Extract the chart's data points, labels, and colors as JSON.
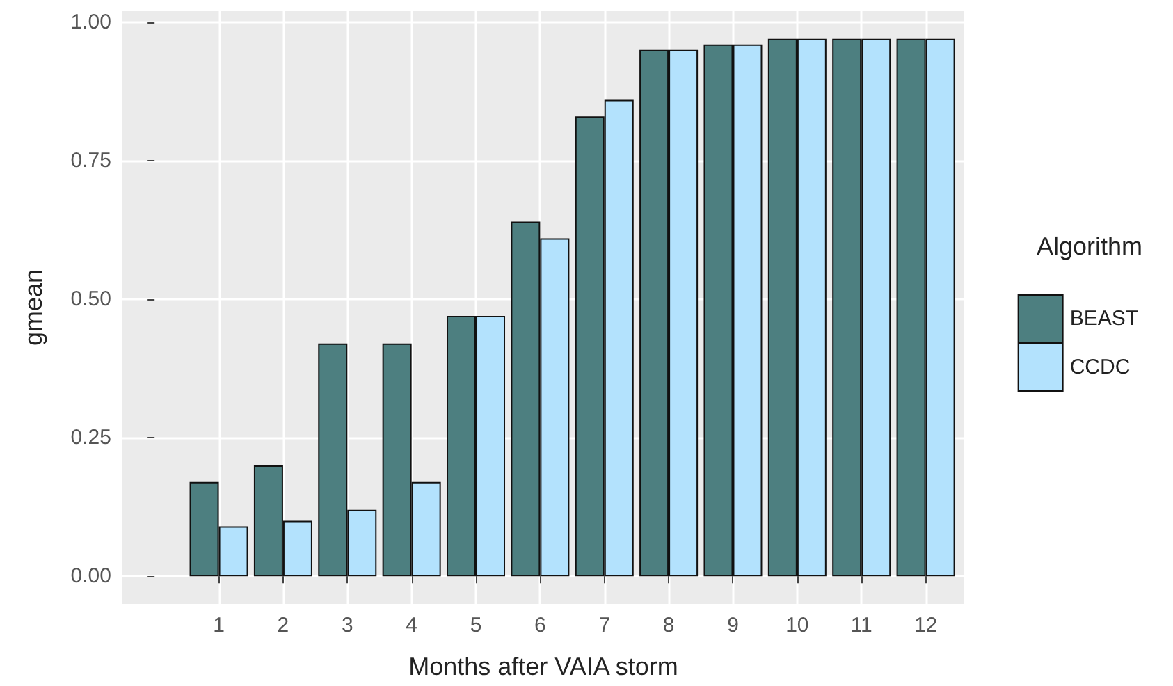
{
  "chart_data": {
    "type": "bar",
    "xlabel": "Months after VAIA storm",
    "ylabel": "gmean",
    "legend_title": "Algorithm",
    "x": [
      1,
      2,
      3,
      4,
      5,
      6,
      7,
      8,
      9,
      10,
      11,
      12
    ],
    "series": [
      {
        "name": "BEAST",
        "color": "#4d7f80",
        "values": [
          0.17,
          0.2,
          0.42,
          0.42,
          0.47,
          0.64,
          0.83,
          0.95,
          0.96,
          0.97,
          0.97,
          0.97
        ]
      },
      {
        "name": "CCDC",
        "color": "#b3e2fd",
        "values": [
          0.09,
          0.1,
          0.12,
          0.17,
          0.47,
          0.61,
          0.86,
          0.95,
          0.96,
          0.97,
          0.97,
          0.97
        ]
      }
    ],
    "xlim": [
      -0.5,
      12.6
    ],
    "xticks": [
      1,
      2,
      3,
      4,
      5,
      6,
      7,
      8,
      9,
      10,
      11,
      12
    ],
    "ylim": [
      -0.05,
      1.02
    ],
    "yticks": [
      {
        "value": 0,
        "label": "0.00"
      },
      {
        "value": 0.25,
        "label": "0.25"
      },
      {
        "value": 0.5,
        "label": "0.50"
      },
      {
        "value": 0.75,
        "label": "0.75"
      },
      {
        "value": 1,
        "label": "1.00"
      }
    ],
    "grid": true,
    "legend": "right"
  }
}
